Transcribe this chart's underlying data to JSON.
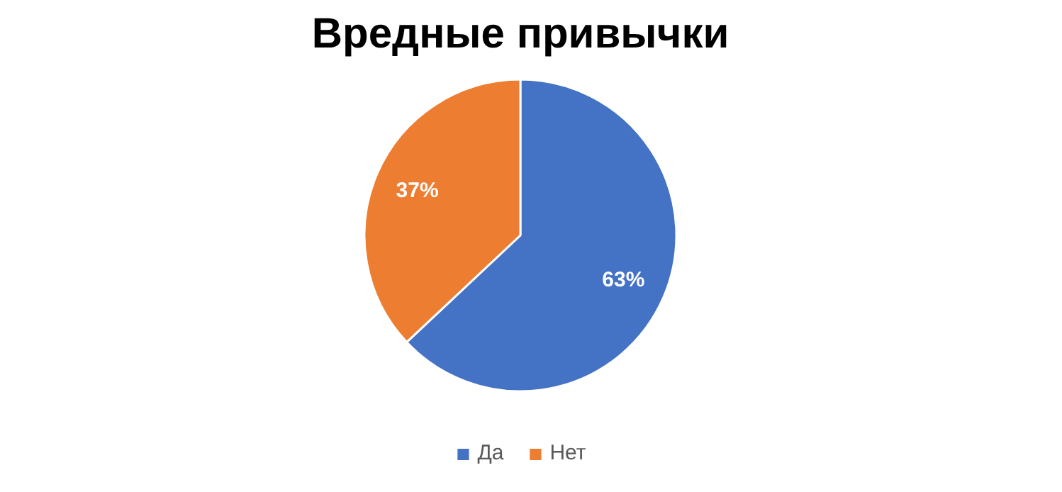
{
  "chart_data": {
    "type": "pie",
    "title": "Вредные привычки",
    "categories": [
      "Да",
      "Нет"
    ],
    "values": [
      63,
      37
    ],
    "colors": [
      "#4472c4",
      "#ed7d31"
    ],
    "value_labels": [
      "63%",
      "37%"
    ],
    "legend": "bottom"
  }
}
